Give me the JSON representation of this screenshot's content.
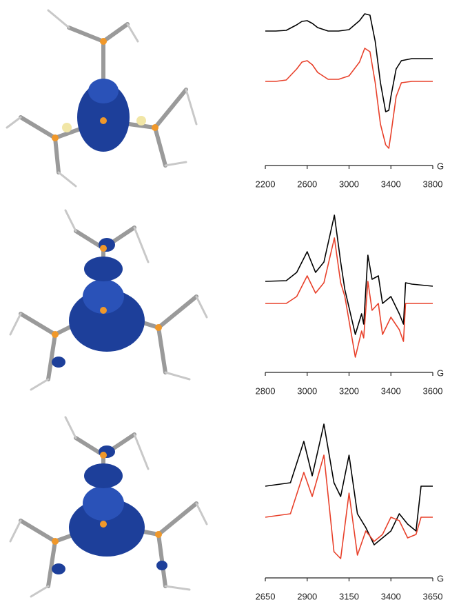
{
  "chart_data": [
    {
      "type": "line",
      "x_label": "G",
      "x": [
        2200,
        2300,
        2400,
        2500,
        2550,
        2600,
        2650,
        2700,
        2800,
        2900,
        3000,
        3100,
        3150,
        3200,
        3250,
        3300,
        3350,
        3380,
        3400,
        3450,
        3500,
        3600,
        3700,
        3800
      ],
      "xlim": [
        2200,
        3800
      ],
      "xticks": [
        2200,
        2600,
        3000,
        3400,
        3800
      ],
      "series": [
        {
          "color": "#000000",
          "values": [
            19.5,
            19.5,
            19.6,
            20.4,
            20.9,
            21,
            20.6,
            20,
            19.5,
            19.5,
            19.7,
            21,
            22,
            21.8,
            18,
            12,
            7.8,
            8,
            10,
            14,
            15.2,
            15.5,
            15.5,
            15.5
          ]
        },
        {
          "color": "#e8402a",
          "values": [
            12.2,
            12.2,
            12.4,
            14,
            15,
            15.2,
            14.6,
            13.5,
            12.5,
            12.5,
            13,
            15,
            17,
            16.5,
            12,
            6,
            3,
            2.5,
            4.5,
            10,
            12,
            12.2,
            12.2,
            12.2
          ]
        }
      ]
    },
    {
      "type": "line",
      "x_label": "G",
      "x": [
        2800,
        2900,
        2950,
        3000,
        3040,
        3080,
        3130,
        3160,
        3180,
        3230,
        3260,
        3270,
        3290,
        3310,
        3340,
        3360,
        3400,
        3440,
        3460,
        3470,
        3500,
        3600
      ],
      "xlim": [
        2800,
        3600
      ],
      "xticks": [
        2800,
        3000,
        3200,
        3400,
        3600
      ],
      "series": [
        {
          "color": "#000000",
          "values": [
            13.2,
            13.3,
            14.5,
            17.5,
            14.5,
            16,
            22.8,
            16,
            12,
            5.5,
            8.5,
            7,
            17,
            13.5,
            14,
            10,
            11,
            8.5,
            7,
            13,
            12.8,
            12.5
          ]
        },
        {
          "color": "#e8402a",
          "values": [
            10,
            10,
            11,
            14,
            11.5,
            13,
            19.5,
            13,
            11,
            2.2,
            6,
            5,
            13.2,
            9,
            10,
            5.5,
            8,
            6.2,
            4.5,
            10,
            10,
            10
          ]
        }
      ]
    },
    {
      "type": "line",
      "x_label": "G",
      "x": [
        2650,
        2800,
        2880,
        2930,
        3000,
        3060,
        3100,
        3150,
        3200,
        3250,
        3300,
        3350,
        3400,
        3450,
        3500,
        3550,
        3580,
        3650
      ],
      "xlim": [
        2650,
        3650
      ],
      "xticks": [
        2650,
        2900,
        3150,
        3400,
        3650
      ],
      "series": [
        {
          "color": "#000000",
          "values": [
            13.3,
            13.8,
            19.8,
            14.8,
            22.3,
            13.8,
            11.8,
            17.8,
            9.3,
            7.3,
            4.8,
            5.8,
            6.8,
            9.3,
            7.8,
            6.8,
            13.3,
            13.3
          ]
        },
        {
          "color": "#e8402a",
          "values": [
            8.8,
            9.3,
            15.3,
            11.8,
            17.8,
            3.8,
            2.8,
            12.3,
            3.3,
            6.8,
            5.3,
            6.3,
            8.8,
            8.3,
            5.8,
            6.3,
            8.8,
            8.8
          ]
        }
      ]
    }
  ]
}
